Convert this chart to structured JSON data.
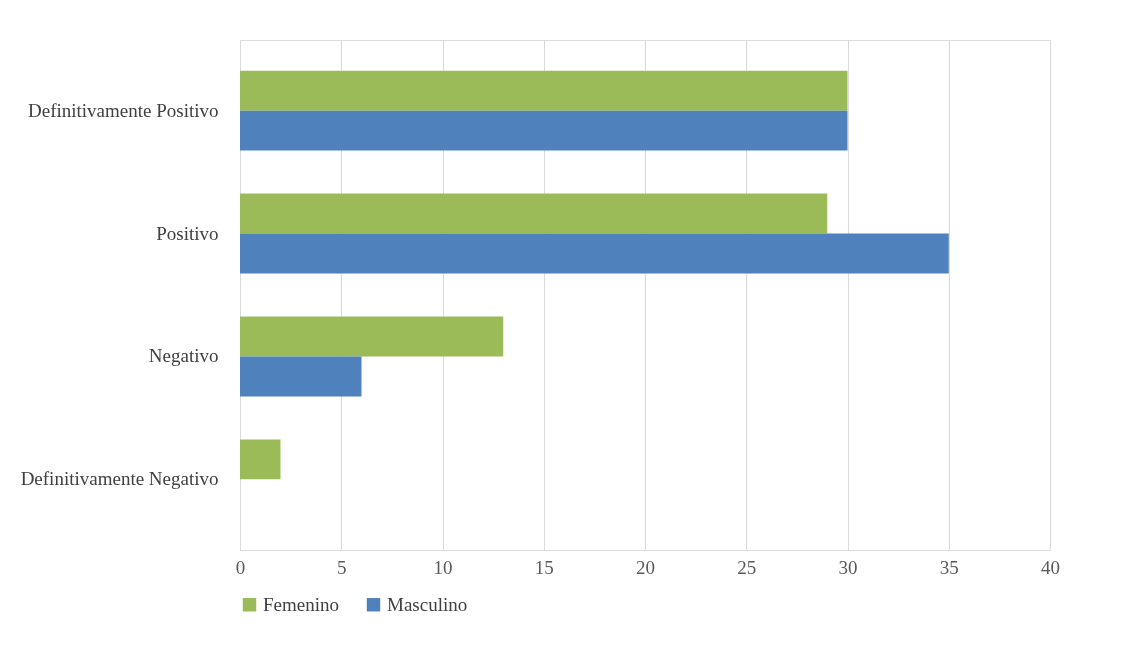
{
  "chart_data": {
    "type": "bar",
    "orientation": "horizontal",
    "categories": [
      "Definitivamente Positivo",
      "Positivo",
      "Negativo",
      "Definitivamente Negativo"
    ],
    "series": [
      {
        "name": "Femenino",
        "color": "#9bbb59",
        "values": [
          30,
          29,
          13,
          2
        ]
      },
      {
        "name": "Masculino",
        "color": "#4f81bd",
        "values": [
          30,
          35,
          6,
          0
        ]
      }
    ],
    "xlim": [
      0,
      40
    ],
    "xticks": [
      0,
      5,
      10,
      15,
      20,
      25,
      30,
      35,
      40
    ],
    "grid": "x",
    "legend": "bottom"
  }
}
